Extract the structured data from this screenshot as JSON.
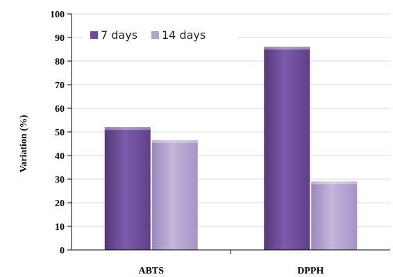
{
  "colors": {
    "series_7_days": "#6E4C9A",
    "series_14_days": "#B3A2CF",
    "grid": "#d9d9d9",
    "axis": "#000000"
  },
  "chart_data": {
    "type": "bar",
    "categories": [
      "ABTS",
      "DPPH"
    ],
    "series": [
      {
        "name": "7 days",
        "values": [
          52,
          86
        ]
      },
      {
        "name": "14 days",
        "values": [
          46.5,
          29
        ]
      }
    ],
    "xlabel": "",
    "ylabel": "Variation (%)",
    "ylim": [
      0,
      100
    ],
    "yticks": [
      0,
      10,
      20,
      30,
      40,
      50,
      60,
      70,
      80,
      90,
      100
    ],
    "grid": true,
    "legend_position": "top-left"
  }
}
